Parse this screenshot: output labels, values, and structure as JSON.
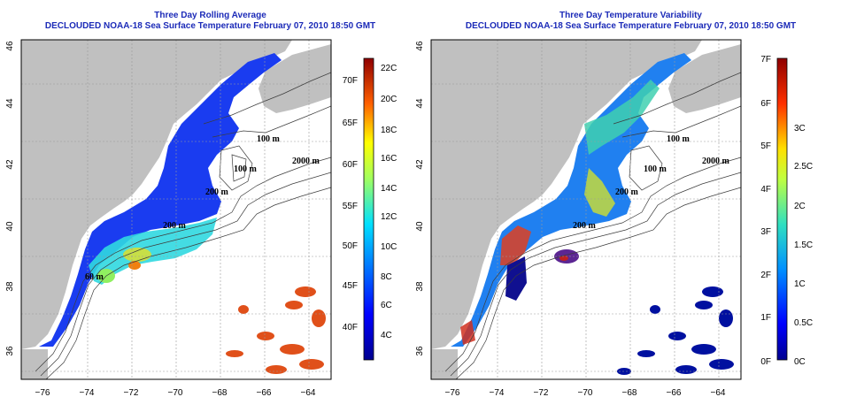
{
  "left_panel": {
    "title_line1": "Three Day Rolling Average",
    "title_line2": "DECLOUDED NOAA-18 Sea Surface Temperature February 07, 2010 18:50 GMT",
    "colorbar": {
      "celsius_labels": [
        "22C",
        "20C",
        "18C",
        "16C",
        "14C",
        "12C",
        "10C",
        "8C",
        "6C",
        "4C"
      ],
      "fahrenheit_labels": [
        "70F",
        "65F",
        "60F",
        "55F",
        "50F",
        "45F",
        "40F"
      ]
    }
  },
  "right_panel": {
    "title_line1": "Three Day Temperature Variability",
    "title_line2": "DECLOUDED NOAA-18 Sea Surface Temperature February 07, 2010 18:50 GMT",
    "colorbar": {
      "celsius_labels": [
        "3C",
        "2.5C",
        "2C",
        "1.5C",
        "1C",
        "0.5C",
        "0C"
      ],
      "fahrenheit_labels": [
        "7F",
        "6F",
        "5F",
        "4F",
        "3F",
        "2F",
        "1F",
        "0F"
      ]
    }
  },
  "axes": {
    "longitude_ticks": [
      "−76",
      "−74",
      "−72",
      "−70",
      "−68",
      "−66",
      "−64"
    ],
    "latitude_ticks": [
      "36",
      "38",
      "40",
      "42",
      "44",
      "46"
    ]
  },
  "contour_labels": [
    "100 m",
    "2000 m",
    "100 m",
    "200 m",
    "200 m",
    "60 m"
  ],
  "colors": {
    "land": "#c0c0c0",
    "title": "#1c2bb8",
    "contour": "#3c3c3c"
  }
}
